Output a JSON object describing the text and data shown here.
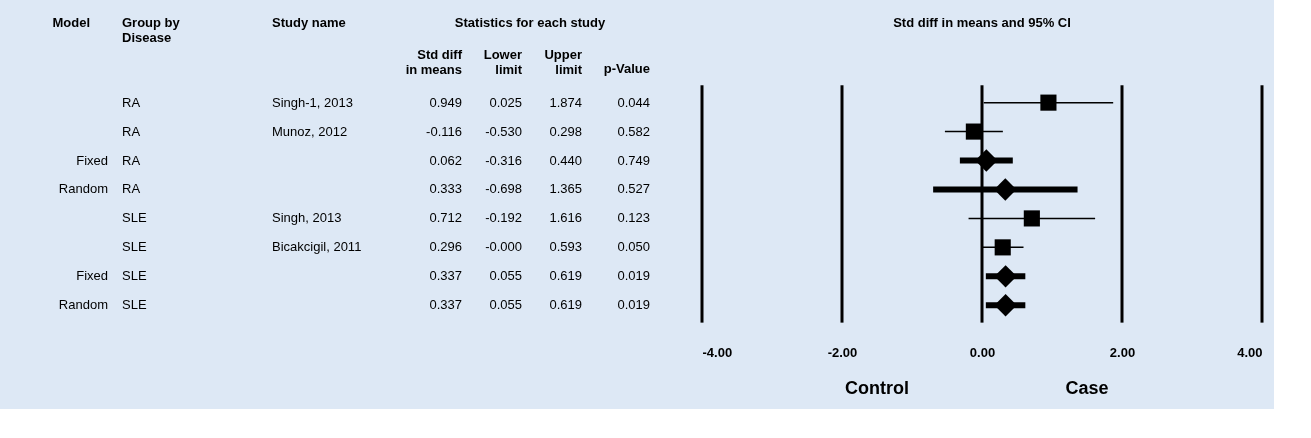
{
  "chart_data": {
    "type": "scatter",
    "title": "Std diff in means and 95% CI",
    "categories": [
      null,
      null,
      null,
      null,
      null,
      null,
      null,
      null
    ],
    "orientation": "horizontal",
    "series": [
      {
        "type": "scatter",
        "marker": "square",
        "color": "#000000",
        "values": [
          0.949,
          -0.116,
          null,
          null,
          0.712,
          0.296,
          null,
          null
        ],
        "errors": [
          [
            0.025,
            1.874
          ],
          [
            -0.53,
            0.298
          ],
          null,
          null,
          [
            -0.192,
            1.616
          ],
          [
            0.0,
            0.593
          ],
          null,
          null
        ]
      },
      {
        "type": "scatter",
        "marker": "diamond",
        "color": "#000000",
        "values": [
          null,
          null,
          0.062,
          0.333,
          null,
          null,
          0.337,
          0.337
        ],
        "errors": [
          null,
          null,
          [
            -0.316,
            0.44
          ],
          [
            -0.698,
            1.365
          ],
          null,
          null,
          [
            0.055,
            0.619
          ],
          [
            0.055,
            0.619
          ]
        ]
      }
    ],
    "xlim": [
      -4,
      4
    ],
    "xticks": [
      {
        "value": -4,
        "label": "-4.00"
      },
      {
        "value": -2,
        "label": "-2.00"
      },
      {
        "value": 0,
        "label": "0.00"
      },
      {
        "value": 2,
        "label": "2.00"
      },
      {
        "value": 4,
        "label": "4.00"
      }
    ],
    "grid": "x",
    "annotations": [
      "Model",
      "Group by\nDisease",
      "Study name",
      "Statistics for each study",
      "Std diff\nin means",
      "Lower\nlimit",
      "Upper\nlimit",
      "p-Value",
      "Control",
      "Case",
      "RA",
      "Singh-1, 2013",
      "0.949",
      "0.025",
      "1.874",
      "0.044",
      "RA",
      "Munoz, 2012",
      "-0.116",
      "-0.530",
      "0.298",
      "0.582",
      "Fixed",
      "RA",
      "0.062",
      "-0.316",
      "0.440",
      "0.749",
      "Random",
      "RA",
      "0.333",
      "-0.698",
      "1.365",
      "0.527",
      "SLE",
      "Singh, 2013",
      "0.712",
      "-0.192",
      "1.616",
      "0.123",
      "SLE",
      "Bicakcigil, 2011",
      "0.296",
      "-0.000",
      "0.593",
      "0.050",
      "Fixed",
      "SLE",
      "0.337",
      "0.055",
      "0.619",
      "0.019",
      "Random",
      "SLE",
      "0.337",
      "0.055",
      "0.619",
      "0.019"
    ]
  }
}
